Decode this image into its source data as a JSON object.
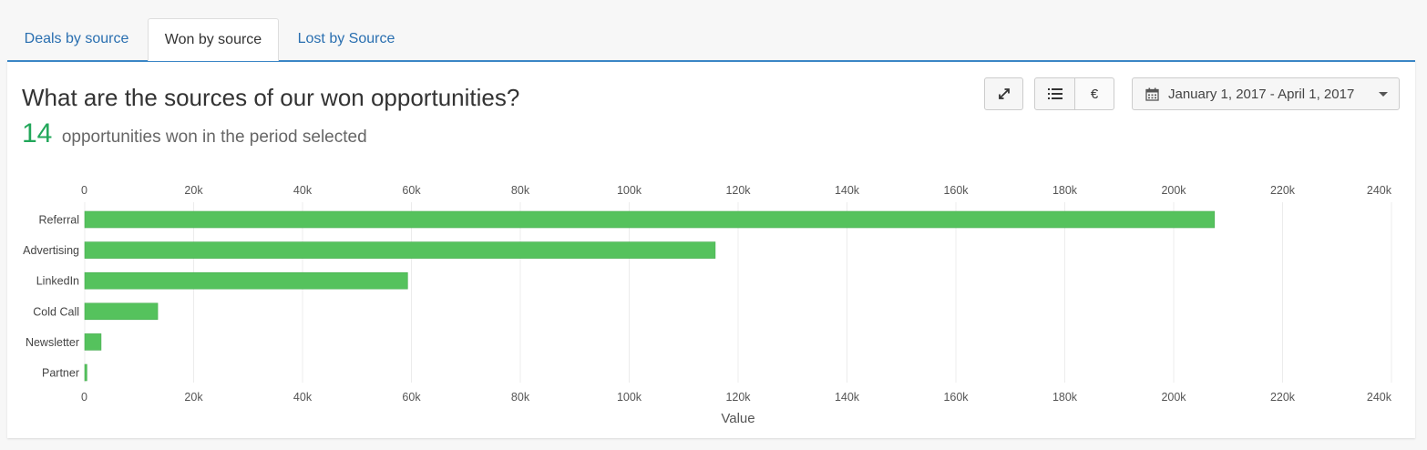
{
  "tabs": [
    {
      "label": "Deals by source",
      "active": false
    },
    {
      "label": "Won by source",
      "active": true
    },
    {
      "label": "Lost by Source",
      "active": false
    }
  ],
  "header": {
    "title": "What are the sources of our won opportunities?",
    "count": "14",
    "subtitle": "opportunities won in the period selected"
  },
  "toolbar": {
    "expand_icon": "expand-icon",
    "list_icon": "list-icon",
    "currency_label": "€",
    "date_range": "January 1, 2017 - April 1, 2017",
    "date_icon": "calendar-icon",
    "dropdown_icon": "caret-down-icon"
  },
  "colors": {
    "bar": "#55c25d",
    "accent": "#3b86c6",
    "count": "#22a75a",
    "link": "#2a6fb0"
  },
  "chart_data": {
    "type": "bar",
    "orientation": "horizontal",
    "categories": [
      "Referral",
      "Advertising",
      "LinkedIn",
      "Cold Call",
      "Newsletter",
      "Partner"
    ],
    "values": [
      207500,
      115800,
      59300,
      13400,
      3000,
      400
    ],
    "xlabel": "Value",
    "ylabel": "",
    "xlim": [
      0,
      240000
    ],
    "tick_labels": [
      "0",
      "20k",
      "40k",
      "60k",
      "80k",
      "100k",
      "120k",
      "140k",
      "160k",
      "180k",
      "200k",
      "220k",
      "240k"
    ],
    "grid": true,
    "legend": false
  }
}
